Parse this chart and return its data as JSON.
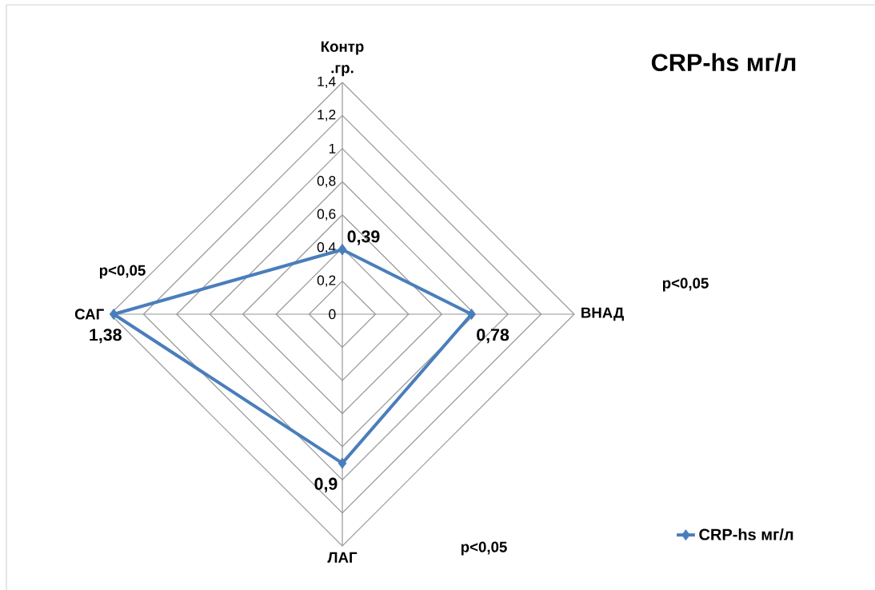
{
  "chart_data": {
    "type": "radar",
    "title": "CRP-hs мг/л",
    "categories": [
      "Контр .гр.",
      "ВНАД",
      "ЛАГ",
      "САГ"
    ],
    "series": [
      {
        "name": "CRP-hs мг/л",
        "color": "#4a7ebb",
        "values": [
          0.39,
          0.78,
          0.9,
          1.38
        ],
        "value_labels": [
          "0,39",
          "0,78",
          "0,9",
          "1,38"
        ]
      }
    ],
    "ylim": [
      0,
      1.4
    ],
    "yticks": [
      0,
      {
        "value": 0.2,
        "label": "0,2"
      },
      {
        "value": 0.4,
        "label": "0,4"
      },
      {
        "value": 0.6,
        "label": "0,6"
      },
      {
        "value": 0.8,
        "label": "0,8"
      },
      1,
      {
        "value": 1.2,
        "label": "1,2"
      },
      {
        "value": 1.4,
        "label": "1,4"
      }
    ],
    "grid": true,
    "marker": "diamond",
    "legend": "bottom right",
    "annotations": [
      "p<0,05",
      "p<0,05",
      "p<0,05"
    ]
  }
}
